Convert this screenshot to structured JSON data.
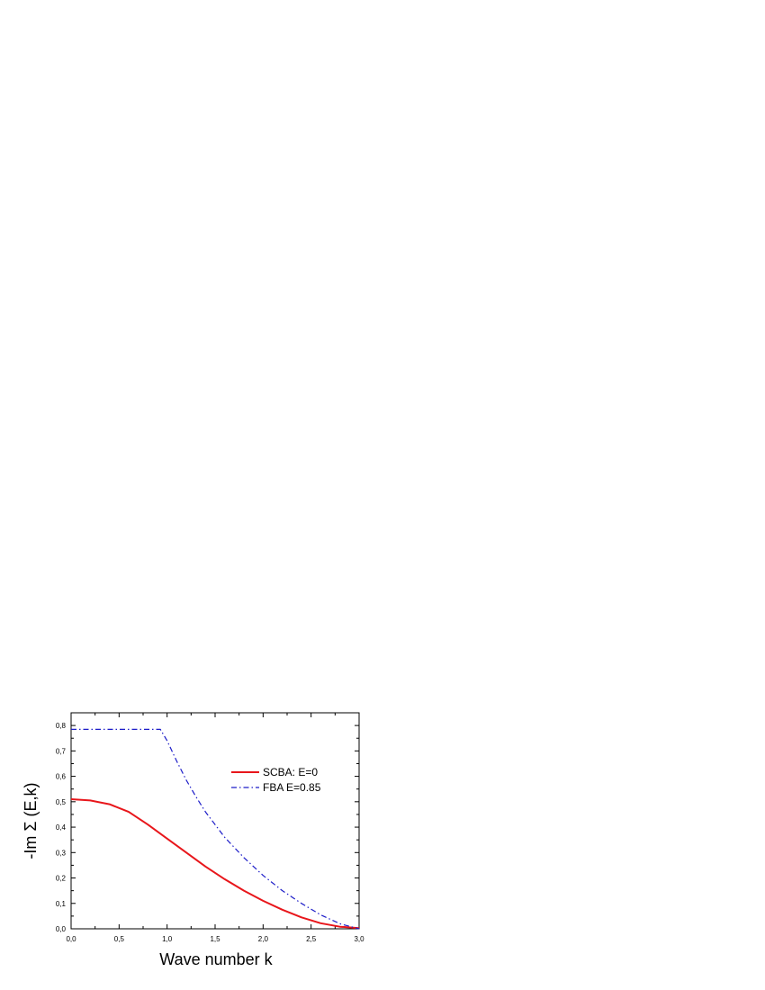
{
  "chart_data": {
    "type": "line",
    "xlabel": "Wave number k",
    "ylabel": "-Im Σ (E,k)",
    "xlim": [
      0.0,
      3.0
    ],
    "ylim": [
      0.0,
      0.85
    ],
    "x_ticks": [
      "0,0",
      "0,5",
      "1,0",
      "1,5",
      "2,0",
      "2,5",
      "3,0"
    ],
    "x_tick_values": [
      0,
      0.5,
      1.0,
      1.5,
      2.0,
      2.5,
      3.0
    ],
    "y_ticks": [
      "0,0",
      "0,1",
      "0,2",
      "0,3",
      "0,4",
      "0,5",
      "0,6",
      "0,7",
      "0,8"
    ],
    "y_tick_values": [
      0,
      0.1,
      0.2,
      0.3,
      0.4,
      0.5,
      0.6,
      0.7,
      0.8
    ],
    "grid": false,
    "legend_position": "top-right",
    "series": [
      {
        "name": "SCBA: E=0",
        "color": "#e8161b",
        "style": "solid",
        "x": [
          0.0,
          0.2,
          0.4,
          0.6,
          0.8,
          1.0,
          1.2,
          1.4,
          1.6,
          1.8,
          2.0,
          2.2,
          2.4,
          2.6,
          2.8,
          3.0
        ],
        "y": [
          0.51,
          0.505,
          0.49,
          0.46,
          0.41,
          0.355,
          0.3,
          0.245,
          0.195,
          0.15,
          0.11,
          0.075,
          0.045,
          0.022,
          0.008,
          0.003
        ]
      },
      {
        "name": "FBA E=0.85",
        "color": "#1c1cc8",
        "style": "dash-dot",
        "x": [
          0.0,
          0.2,
          0.4,
          0.6,
          0.8,
          0.93,
          1.0,
          1.1,
          1.2,
          1.3,
          1.4,
          1.5,
          1.6,
          1.8,
          2.0,
          2.2,
          2.4,
          2.6,
          2.8,
          3.0
        ],
        "y": [
          0.785,
          0.785,
          0.785,
          0.785,
          0.785,
          0.785,
          0.74,
          0.66,
          0.585,
          0.52,
          0.46,
          0.41,
          0.36,
          0.28,
          0.21,
          0.15,
          0.1,
          0.055,
          0.02,
          0.0
        ]
      }
    ]
  }
}
